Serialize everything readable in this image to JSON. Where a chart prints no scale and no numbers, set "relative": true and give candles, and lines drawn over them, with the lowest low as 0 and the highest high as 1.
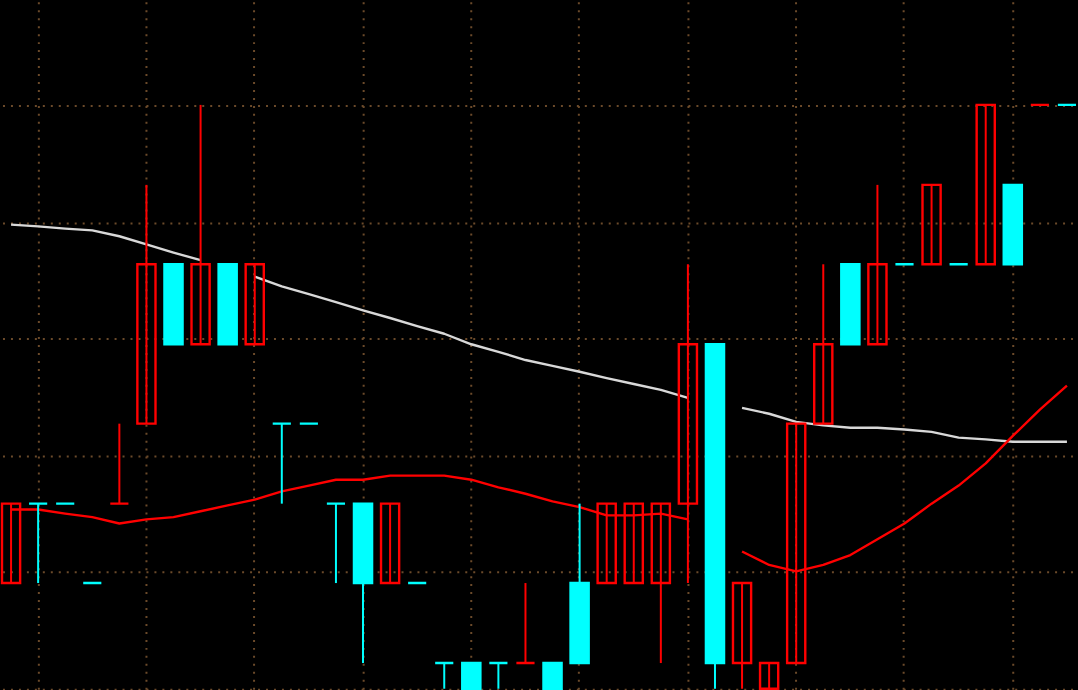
{
  "chart_data": {
    "type": "candlestick",
    "relative": true,
    "grid": true,
    "legend": false,
    "tick_labels": false,
    "categories": [
      null,
      null,
      null,
      null,
      null,
      null,
      null,
      null,
      null,
      null,
      null,
      null,
      null,
      null,
      null,
      null,
      null,
      null,
      null,
      null,
      null,
      null,
      null,
      null,
      null,
      null,
      null,
      null,
      null,
      null,
      null,
      null,
      null,
      null,
      null,
      null,
      null,
      null,
      null,
      null
    ],
    "series": [
      {
        "type": "line",
        "color": "#d8d8d8",
        "values": [
          0.795,
          0.792,
          0.788,
          0.785,
          0.775,
          0.761,
          0.747,
          0.734,
          null,
          0.706,
          0.689,
          0.676,
          0.662,
          0.648,
          0.635,
          0.621,
          0.608,
          0.59,
          0.577,
          0.563,
          0.553,
          0.543,
          0.532,
          0.522,
          0.512,
          0.498,
          null,
          0.481,
          0.471,
          0.457,
          0.451,
          0.447,
          0.447,
          0.444,
          0.44,
          0.43,
          0.427,
          0.423,
          0.423,
          0.423
        ]
      },
      {
        "type": "line",
        "color": "#ff0000",
        "values": [
          0.307,
          0.307,
          0.3,
          0.294,
          0.283,
          0.29,
          0.294,
          0.304,
          0.314,
          0.324,
          0.338,
          0.348,
          0.358,
          0.358,
          0.365,
          0.365,
          0.365,
          0.358,
          0.345,
          0.334,
          0.321,
          0.311,
          0.297,
          0.297,
          0.3,
          0.29,
          null,
          0.235,
          0.212,
          0.201,
          0.212,
          0.229,
          0.256,
          0.283,
          0.317,
          0.348,
          0.386,
          0.433,
          0.478,
          0.519
        ]
      },
      {
        "ohlc": [
          [
            0.181,
            0.317,
            0.181,
            0.317
          ],
          [
            0.317,
            0.317,
            0.181,
            0.317
          ],
          [
            0.317,
            0.317,
            0.317,
            0.317
          ],
          [
            0.181,
            0.181,
            0.181,
            0.181
          ],
          [
            0.317,
            0.454,
            0.317,
            0.317
          ],
          [
            0.454,
            0.863,
            0.454,
            0.727
          ],
          [
            0.727,
            0.727,
            0.59,
            0.59
          ],
          [
            0.59,
            1,
            0.59,
            0.727
          ],
          [
            0.727,
            0.727,
            0.59,
            0.59
          ],
          [
            0.59,
            0.727,
            0.59,
            0.727
          ],
          [
            0.454,
            0.454,
            0.317,
            0.454
          ],
          [
            0.454,
            0.454,
            0.454,
            0.454
          ],
          [
            0.317,
            0.317,
            0.181,
            0.317
          ],
          [
            0.317,
            0.317,
            0.044,
            0.181
          ],
          [
            0.181,
            0.317,
            0.181,
            0.317
          ],
          [
            0.181,
            0.181,
            0.181,
            0.181
          ],
          [
            0.044,
            0.044,
            0,
            0.044
          ],
          [
            0.044,
            0.044,
            0,
            0
          ],
          [
            0.044,
            0.044,
            0,
            0.044
          ],
          [
            0.044,
            0.181,
            0.044,
            0.044
          ],
          [
            0.044,
            0.044,
            0,
            0
          ],
          [
            0.181,
            0.317,
            0.044,
            0.044
          ],
          [
            0.181,
            0.317,
            0.181,
            0.317
          ],
          [
            0.181,
            0.317,
            0.181,
            0.317
          ],
          [
            0.181,
            0.317,
            0.044,
            0.317
          ],
          [
            0.317,
            0.727,
            0.181,
            0.59
          ],
          [
            0.59,
            0.59,
            0,
            0.044
          ],
          [
            0.044,
            0.181,
            0,
            0.181
          ],
          [
            0,
            0.044,
            0,
            0.044
          ],
          [
            0.044,
            0.454,
            0.044,
            0.454
          ],
          [
            0.454,
            0.727,
            0.454,
            0.59
          ],
          [
            0.727,
            0.727,
            0.59,
            0.59
          ],
          [
            0.59,
            0.863,
            0.59,
            0.727
          ],
          [
            0.727,
            0.727,
            0.727,
            0.727
          ],
          [
            0.727,
            0.863,
            0.727,
            0.863
          ],
          [
            0.727,
            0.727,
            0.727,
            0.727
          ],
          [
            0.727,
            1,
            0.727,
            1
          ],
          [
            0.863,
            0.863,
            0.727,
            0.727
          ],
          [
            1,
            1,
            1,
            1
          ],
          [
            1,
            1,
            1,
            1
          ]
        ],
        "colors": [
          "#ff0000",
          "#00ffff",
          "#00ffff",
          "#00ffff",
          "#ff0000",
          "#ff0000",
          "#00ffff",
          "#ff0000",
          "#00ffff",
          "#ff0000",
          "#00ffff",
          "#00ffff",
          "#00ffff",
          "#00ffff",
          "#ff0000",
          "#00ffff",
          "#00ffff",
          "#00ffff",
          "#00ffff",
          "#ff0000",
          "#00ffff",
          "#00ffff",
          "#ff0000",
          "#ff0000",
          "#ff0000",
          "#ff0000",
          "#00ffff",
          "#ff0000",
          "#ff0000",
          "#ff0000",
          "#ff0000",
          "#00ffff",
          "#ff0000",
          "#00ffff",
          "#ff0000",
          "#00ffff",
          "#ff0000",
          "#00ffff",
          "#ff0000",
          "#00ffff"
        ]
      }
    ]
  }
}
